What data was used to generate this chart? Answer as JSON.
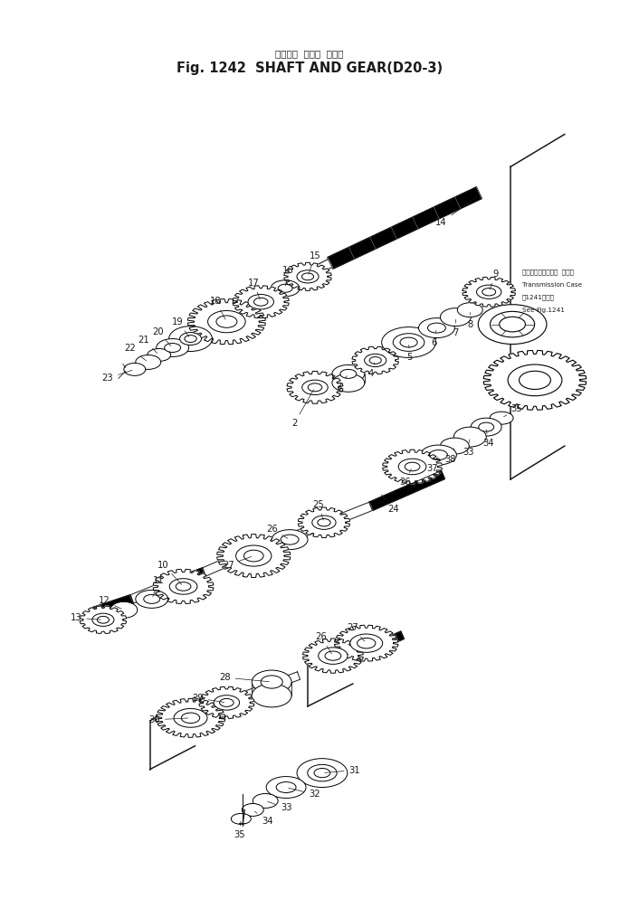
{
  "title_jp": "シャフト  および  ギヤー",
  "title_en": "Fig. 1242  SHAFT AND GEAR(D20-3)",
  "bg_color": "#ffffff",
  "line_color": "#1a1a1a",
  "fig_width": 6.85,
  "fig_height": 10.15,
  "note_lines": [
    "トランスミッション  ケース",
    "Transmission Case",
    "㄄1241図参照",
    "See Fig.1241"
  ]
}
